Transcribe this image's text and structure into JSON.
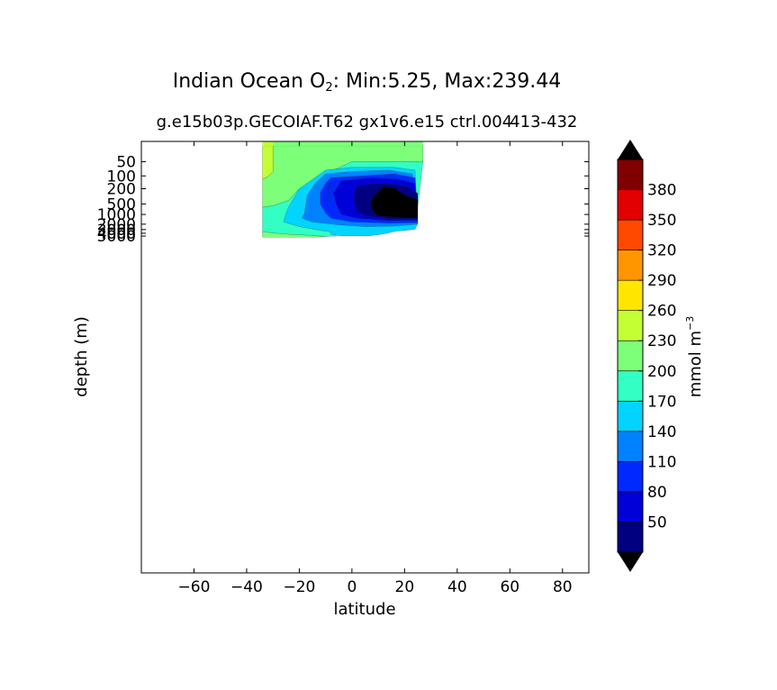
{
  "chart_data": {
    "type": "contourf",
    "title_prefix": "Indian Ocean O",
    "title_sub": "2",
    "title_suffix": ": Min:5.25, Max:239.44",
    "subtitle_run": "g.e15b03p.GECOIAF.T62 gx1v6.e15 ctrl.004",
    "subtitle_years": "413-432",
    "xlabel": "latitude",
    "ylabel": "depth (m)",
    "xlim": [
      -80,
      90
    ],
    "xticks": [
      -60,
      -40,
      -20,
      0,
      20,
      40,
      60,
      80
    ],
    "xtick_labels": [
      "−60",
      "−40",
      "−20",
      "0",
      "20",
      "40",
      "60",
      "80"
    ],
    "yticks": [
      50,
      100,
      200,
      500,
      1000,
      2000,
      3000,
      4000,
      5000
    ],
    "ytick_labels": [
      "50",
      "100",
      "200",
      "500",
      "1000",
      "2000",
      "3000",
      "4000",
      "5000"
    ],
    "colorbar": {
      "label": "mmol m",
      "label_exp": "−3",
      "levels": [
        20,
        50,
        80,
        110,
        140,
        170,
        200,
        230,
        260,
        290,
        320,
        350,
        380,
        410
      ],
      "tick_labels": [
        "50",
        "80",
        "110",
        "140",
        "170",
        "200",
        "230",
        "260",
        "290",
        "320",
        "350",
        "380"
      ],
      "colors": [
        "#000080",
        "#0000d8",
        "#0029ff",
        "#0082ff",
        "#00d4ff",
        "#33ffc4",
        "#7dff7a",
        "#c4ff33",
        "#ffe500",
        "#ff9600",
        "#ff4800",
        "#e30000",
        "#800000"
      ],
      "extend_min_color": "#000000",
      "extend_max_color": "#000000",
      "extend": "both"
    },
    "data_extent": {
      "lat_min": -34,
      "lat_max": 27,
      "min_o2": 5.25,
      "max_o2": 239.44
    },
    "regions": [
      {
        "name": "surface-high",
        "level": 230,
        "color": "#c4ff33",
        "points": [
          [
            -34,
            25
          ],
          [
            -30,
            25
          ],
          [
            -30,
            80
          ],
          [
            -32,
            105
          ],
          [
            -34,
            120
          ]
        ]
      },
      {
        "name": "upper-200",
        "level": 200,
        "color": "#7dff7a",
        "points": [
          [
            -30,
            25
          ],
          [
            27,
            25
          ],
          [
            27,
            50
          ],
          [
            0,
            50
          ],
          [
            -10,
            90
          ],
          [
            -20,
            200
          ],
          [
            -24,
            400
          ],
          [
            -30,
            560
          ],
          [
            -34,
            620
          ],
          [
            -34,
            120
          ],
          [
            -32,
            105
          ],
          [
            -30,
            80
          ]
        ]
      },
      {
        "name": "deep-200",
        "level": 200,
        "color": "#7dff7a",
        "points": [
          [
            -34,
            3500
          ],
          [
            -30,
            3900
          ],
          [
            -24,
            4300
          ],
          [
            -16,
            4700
          ],
          [
            -12,
            5000
          ],
          [
            -10,
            5200
          ],
          [
            -14,
            5500
          ],
          [
            -34,
            5500
          ]
        ]
      },
      {
        "name": "band-170",
        "level": 170,
        "color": "#33ffc4",
        "points": [
          [
            0,
            50
          ],
          [
            27,
            50
          ],
          [
            24,
            2900
          ],
          [
            20,
            3200
          ],
          [
            -6,
            3500
          ],
          [
            -8,
            4200
          ],
          [
            -6,
            4700
          ],
          [
            -6,
            5000
          ],
          [
            -10,
            5200
          ],
          [
            -12,
            5000
          ],
          [
            -16,
            4700
          ],
          [
            -24,
            4300
          ],
          [
            -30,
            3900
          ],
          [
            -34,
            3500
          ],
          [
            -34,
            620
          ],
          [
            -30,
            560
          ],
          [
            -24,
            400
          ],
          [
            -20,
            200
          ],
          [
            -10,
            90
          ]
        ]
      },
      {
        "name": "band-140",
        "level": 140,
        "color": "#00d4ff",
        "points": [
          [
            -10,
            75
          ],
          [
            0,
            65
          ],
          [
            16,
            65
          ],
          [
            24,
            75
          ],
          [
            25,
            2000
          ],
          [
            24,
            2900
          ],
          [
            20,
            3200
          ],
          [
            17,
            3400
          ],
          [
            15,
            3700
          ],
          [
            13,
            4100
          ],
          [
            10,
            4500
          ],
          [
            6,
            5000
          ],
          [
            -4,
            5000
          ],
          [
            -8,
            4400
          ],
          [
            -8,
            3600
          ],
          [
            -14,
            3000
          ],
          [
            -20,
            2400
          ],
          [
            -26,
            1700
          ],
          [
            -25,
            900
          ],
          [
            -24,
            600
          ],
          [
            -20,
            200
          ]
        ]
      },
      {
        "name": "band-110",
        "level": 110,
        "color": "#0082ff",
        "points": [
          [
            -10,
            90
          ],
          [
            0,
            80
          ],
          [
            14,
            75
          ],
          [
            23,
            90
          ],
          [
            25,
            1500
          ],
          [
            25,
            2000
          ],
          [
            16,
            2300
          ],
          [
            5,
            2400
          ],
          [
            -5,
            2100
          ],
          [
            -15,
            1700
          ],
          [
            -19,
            1300
          ],
          [
            -18,
            900
          ],
          [
            -17,
            300
          ],
          [
            -14,
            150
          ]
        ]
      },
      {
        "name": "band-80",
        "level": 80,
        "color": "#0029ff",
        "points": [
          [
            -8,
            110
          ],
          [
            4,
            100
          ],
          [
            16,
            90
          ],
          [
            24,
            110
          ],
          [
            25,
            1800
          ],
          [
            14,
            1850
          ],
          [
            0,
            1700
          ],
          [
            -8,
            1300
          ],
          [
            -10,
            900
          ],
          [
            -12,
            500
          ],
          [
            -12,
            250
          ],
          [
            -10,
            150
          ]
        ]
      },
      {
        "name": "band-50",
        "level": 50,
        "color": "#0000d8",
        "points": [
          [
            -4,
            130
          ],
          [
            8,
            110
          ],
          [
            18,
            120
          ],
          [
            24,
            150
          ],
          [
            25,
            1500
          ],
          [
            14,
            1550
          ],
          [
            2,
            1300
          ],
          [
            -4,
            1000
          ],
          [
            -6,
            500
          ],
          [
            -7,
            250
          ]
        ]
      },
      {
        "name": "band-20",
        "level": 20,
        "color": "#000080",
        "points": [
          [
            2,
            170
          ],
          [
            10,
            150
          ],
          [
            20,
            165
          ],
          [
            25,
            260
          ],
          [
            25,
            1400
          ],
          [
            14,
            1350
          ],
          [
            5,
            1100
          ],
          [
            2,
            800
          ],
          [
            1,
            450
          ],
          [
            1,
            250
          ]
        ]
      },
      {
        "name": "core-low",
        "level": 5,
        "color": "#000000",
        "points": [
          [
            8,
            320
          ],
          [
            12,
            180
          ],
          [
            16,
            190
          ],
          [
            20,
            290
          ],
          [
            25,
            380
          ],
          [
            25,
            1300
          ],
          [
            18,
            1250
          ],
          [
            10,
            1100
          ],
          [
            8,
            800
          ],
          [
            7,
            500
          ]
        ]
      },
      {
        "name": "sliver-low",
        "level": 80,
        "color": "#0029ff",
        "points": [
          [
            -9,
            165
          ],
          [
            -8,
            160
          ],
          [
            -8,
            420
          ],
          [
            -9,
            440
          ]
        ]
      }
    ]
  }
}
